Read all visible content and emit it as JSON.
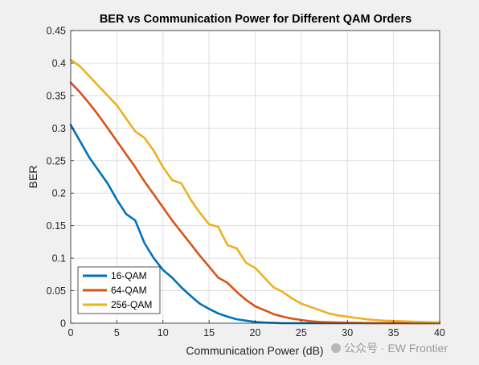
{
  "chart_data": {
    "type": "line",
    "title": "BER vs Communication Power for Different QAM Orders",
    "xlabel": "Communication Power (dB)",
    "ylabel": "BER",
    "xlim": [
      0,
      40
    ],
    "ylim": [
      0,
      0.45
    ],
    "x_ticks": [
      "0",
      "5",
      "10",
      "15",
      "20",
      "25",
      "30",
      "35",
      "40"
    ],
    "y_ticks": [
      "0",
      "0.05",
      "0.1",
      "0.15",
      "0.2",
      "0.25",
      "0.3",
      "0.35",
      "0.4",
      "0.45"
    ],
    "grid": true,
    "legend_position": "bottom-left",
    "x": [
      0,
      1,
      2,
      3,
      4,
      5,
      6,
      7,
      8,
      9,
      10,
      11,
      12,
      13,
      14,
      15,
      16,
      17,
      18,
      19,
      20,
      21,
      22,
      23,
      24,
      25,
      26,
      27,
      28,
      29,
      30,
      31,
      32,
      33,
      34,
      35,
      36,
      37,
      38,
      39,
      40
    ],
    "series": [
      {
        "name": "16-QAM",
        "color": "#0072BD",
        "values": [
          0.305,
          0.28,
          0.255,
          0.235,
          0.215,
          0.19,
          0.168,
          0.158,
          0.123,
          0.1,
          0.082,
          0.07,
          0.055,
          0.042,
          0.03,
          0.022,
          0.015,
          0.01,
          0.006,
          0.004,
          0.002,
          0.001,
          0.0005,
          0,
          0,
          0,
          0,
          0,
          0,
          0,
          0,
          0,
          0,
          0,
          0,
          0,
          0,
          0,
          0,
          0,
          0
        ]
      },
      {
        "name": "64-QAM",
        "color": "#D95319",
        "values": [
          0.37,
          0.355,
          0.338,
          0.32,
          0.3,
          0.28,
          0.26,
          0.24,
          0.218,
          0.198,
          0.178,
          0.158,
          0.14,
          0.122,
          0.104,
          0.087,
          0.07,
          0.062,
          0.048,
          0.036,
          0.026,
          0.02,
          0.014,
          0.01,
          0.007,
          0.005,
          0.003,
          0.002,
          0.0015,
          0.001,
          0.0008,
          0.0005,
          0.0003,
          0,
          0,
          0,
          0,
          0,
          0,
          0,
          0
        ]
      },
      {
        "name": "256-QAM",
        "color": "#EDB120",
        "values": [
          0.405,
          0.395,
          0.38,
          0.365,
          0.35,
          0.335,
          0.315,
          0.295,
          0.285,
          0.265,
          0.24,
          0.22,
          0.215,
          0.19,
          0.17,
          0.152,
          0.148,
          0.12,
          0.115,
          0.093,
          0.085,
          0.07,
          0.055,
          0.048,
          0.038,
          0.03,
          0.025,
          0.02,
          0.015,
          0.012,
          0.01,
          0.008,
          0.006,
          0.005,
          0.004,
          0.0035,
          0.003,
          0.0025,
          0.002,
          0.0015,
          0.001
        ]
      }
    ]
  },
  "watermark": "公众号 · EW Frontier"
}
